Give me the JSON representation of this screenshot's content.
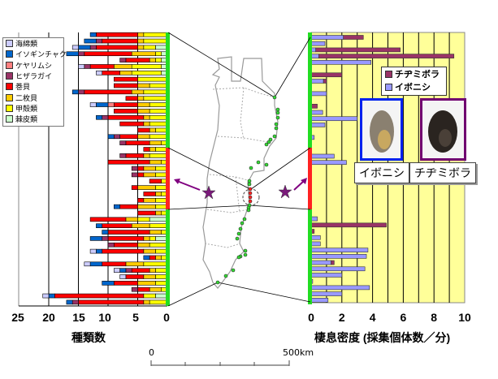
{
  "left_legend": [
    "海綿類",
    "イソギンチャク",
    "ケヤリムシ",
    "ヒザラガイ",
    "巻貝",
    "二枚貝",
    "甲殻類",
    "棘皮類"
  ],
  "right_legend": [
    "チヂミボラ",
    "イボニシ"
  ],
  "photo_labels": {
    "iboni": "イボニシ",
    "chijimi": "チヂミボラ"
  },
  "scale_bar": {
    "start": "0",
    "end": "500km"
  },
  "colors": {
    "categories": [
      "#CCCCFF",
      "#0066CC",
      "#FF8080",
      "#993366",
      "#FF0000",
      "#FFCC00",
      "#FFFF00",
      "#CCFFCC"
    ],
    "iboni": "#9999FF",
    "chijimi": "#993366",
    "region_normal": "#22DD22",
    "region_highlight": "#FF2222",
    "right_bg": "#FFFF99"
  },
  "chart_data": [
    {
      "type": "bar",
      "orientation": "horizontal-reversed",
      "stacked": true,
      "xlabel": "種類数",
      "xticks": [
        "25",
        "20",
        "15",
        "10",
        "5",
        "0"
      ],
      "xlim": [
        0,
        25
      ],
      "series_names": [
        "海綿類",
        "イソギンチャク",
        "ケヤリムシ",
        "ヒザラガイ",
        "巻貝",
        "二枚貝",
        "甲殻類",
        "棘皮類"
      ],
      "rows": [
        [
          0,
          1,
          0,
          0,
          7,
          1,
          4,
          0
        ],
        [
          0,
          2,
          0,
          1,
          6,
          1,
          4,
          0
        ],
        [
          1,
          2,
          0,
          1,
          7,
          1,
          2,
          2
        ],
        [
          0,
          2,
          0,
          1,
          8,
          4,
          1,
          1
        ],
        [
          0,
          0,
          0,
          1,
          4,
          1,
          1,
          1
        ],
        [
          1,
          0,
          0,
          1,
          4,
          3,
          5,
          1
        ],
        [
          1,
          0,
          0,
          0,
          3,
          2,
          5,
          1
        ],
        [
          0,
          0,
          0,
          0,
          4,
          0,
          5,
          0
        ],
        [
          0,
          0,
          0,
          0,
          4,
          2,
          3,
          0
        ],
        [
          0,
          1,
          0,
          1,
          8,
          2,
          4,
          0
        ],
        [
          0,
          0,
          0,
          0,
          2,
          1,
          4,
          0
        ],
        [
          1,
          2,
          1,
          0,
          4,
          2,
          3,
          0
        ],
        [
          0,
          0,
          0,
          0,
          4,
          2,
          3,
          0
        ],
        [
          0,
          1,
          0,
          1,
          6,
          1,
          3,
          0
        ],
        [
          0,
          0,
          0,
          0,
          4,
          1,
          3,
          0
        ],
        [
          0,
          0,
          0,
          0,
          2,
          1,
          2,
          0
        ],
        [
          0,
          1,
          0,
          1,
          3,
          2,
          3,
          0
        ],
        [
          0,
          0,
          0,
          1,
          4,
          2,
          1,
          0
        ],
        [
          0,
          0,
          0,
          0,
          1,
          1,
          2,
          0
        ],
        [
          0,
          0,
          0,
          1,
          3,
          1,
          3,
          0
        ],
        [
          0,
          0,
          0,
          0,
          7,
          2,
          1,
          0
        ],
        [
          0,
          0,
          0,
          1,
          1,
          2,
          2,
          0
        ],
        [
          0,
          0,
          0,
          1,
          1,
          2,
          2,
          0
        ],
        [
          0,
          0,
          0,
          0,
          2,
          0,
          1,
          0
        ],
        [
          0,
          0,
          0,
          0,
          1,
          3,
          2,
          0
        ],
        [
          0,
          0,
          0,
          0,
          2,
          1,
          1,
          0
        ],
        [
          0,
          0,
          0,
          0,
          1,
          2,
          2,
          0
        ],
        [
          0,
          1,
          0,
          0,
          3,
          3,
          2,
          0
        ],
        [
          0,
          0,
          0,
          0,
          3,
          1,
          1,
          0
        ],
        [
          0,
          0,
          0,
          0,
          6,
          2,
          2,
          3
        ],
        [
          0,
          1,
          0,
          0,
          5,
          3,
          3,
          0
        ],
        [
          0,
          1,
          0,
          0,
          7,
          2,
          1,
          0
        ],
        [
          0,
          2,
          0,
          1,
          6,
          1,
          1,
          2
        ],
        [
          0,
          0,
          0,
          1,
          4,
          2,
          3,
          0
        ],
        [
          1,
          1,
          0,
          0,
          7,
          2,
          2,
          0
        ],
        [
          0,
          1,
          0,
          0,
          1,
          1,
          1,
          0
        ],
        [
          1,
          2,
          0,
          0,
          4,
          3,
          4,
          0
        ],
        [
          1,
          1,
          0,
          1,
          3,
          1,
          2,
          0
        ],
        [
          1,
          0,
          0,
          0,
          3,
          2,
          2,
          0
        ],
        [
          0,
          2,
          0,
          0,
          4,
          3,
          2,
          0
        ],
        [
          0,
          0,
          0,
          1,
          2,
          2,
          1,
          0
        ],
        [
          1,
          1,
          0,
          0,
          15,
          0,
          2,
          2
        ],
        [
          0,
          1,
          0,
          1,
          11,
          1,
          3,
          0
        ]
      ],
      "highlight_rows": [
        18,
        29
      ]
    },
    {
      "type": "bar",
      "orientation": "horizontal",
      "stacked": true,
      "xlabel": "棲息密度 (採集個体数／分)",
      "xticks": [
        "0",
        "2",
        "4",
        "6",
        "8",
        "10"
      ],
      "xlim": [
        0,
        10
      ],
      "series_names": [
        "イボニシ",
        "チヂミボラ"
      ],
      "rows": [
        [
          2.1,
          1.3
        ],
        [
          0.9,
          0
        ],
        [
          0.3,
          5.5
        ],
        [
          0.5,
          8.8
        ],
        [
          3.9,
          0
        ],
        [
          0,
          0
        ],
        [
          0,
          2.0
        ],
        [
          0.8,
          0.2
        ],
        [
          0,
          0
        ],
        [
          1.0,
          0
        ],
        [
          0,
          0
        ],
        [
          0,
          0.4
        ],
        [
          0.75,
          0
        ],
        [
          3.0,
          0
        ],
        [
          0.9,
          0
        ],
        [
          0,
          0
        ],
        [
          0.2,
          0
        ],
        [
          0,
          0
        ],
        [
          0,
          0
        ],
        [
          1.5,
          0
        ],
        [
          2.3,
          0
        ],
        [
          0,
          0
        ],
        [
          0,
          0
        ],
        [
          0,
          0
        ],
        [
          0,
          0
        ],
        [
          0,
          0
        ],
        [
          0,
          0
        ],
        [
          0,
          0
        ],
        [
          0,
          0
        ],
        [
          0.4,
          0
        ],
        [
          0,
          4.9
        ],
        [
          0,
          0.2
        ],
        [
          0.6,
          0
        ],
        [
          0.6,
          0
        ],
        [
          3.7,
          0
        ],
        [
          3.6,
          0
        ],
        [
          1.3,
          0.2
        ],
        [
          3.5,
          0
        ],
        [
          2.0,
          0
        ],
        [
          0.1,
          0
        ],
        [
          3.8,
          0
        ],
        [
          2.0,
          0
        ],
        [
          1.1,
          0
        ]
      ]
    }
  ]
}
